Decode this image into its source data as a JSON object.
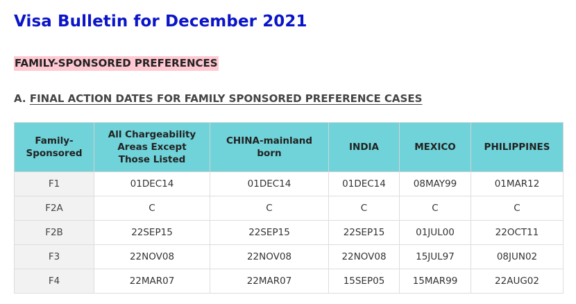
{
  "document": {
    "title": "Visa Bulletin for December 2021",
    "section_heading": "FAMILY-SPONSORED PREFERENCES",
    "sub_heading_prefix": "A.",
    "sub_heading_title": "FINAL ACTION DATES FOR FAMILY SPONSORED PREFERENCE CASES"
  },
  "table": {
    "headers": [
      "Family-\nSponsored",
      "All Chargeability\nAreas Except\nThose Listed",
      "CHINA-mainland\nborn",
      "INDIA",
      "MEXICO",
      "PHILIPPINES"
    ],
    "rows": [
      [
        "F1",
        "01DEC14",
        "01DEC14",
        "01DEC14",
        "08MAY99",
        "01MAR12"
      ],
      [
        "F2A",
        "C",
        "C",
        "C",
        "C",
        "C"
      ],
      [
        "F2B",
        "22SEP15",
        "22SEP15",
        "22SEP15",
        "01JUL00",
        "22OCT11"
      ],
      [
        "F3",
        "22NOV08",
        "22NOV08",
        "22NOV08",
        "15JUL97",
        "08JUN02"
      ],
      [
        "F4",
        "22MAR07",
        "22MAR07",
        "15SEP05",
        "15MAR99",
        "22AUG02"
      ]
    ]
  },
  "colors": {
    "title": "#0a14c8",
    "section_highlight": "#ffc8d2",
    "header_background": "#6fd3d9",
    "row_label_background": "#f2f2f2"
  }
}
